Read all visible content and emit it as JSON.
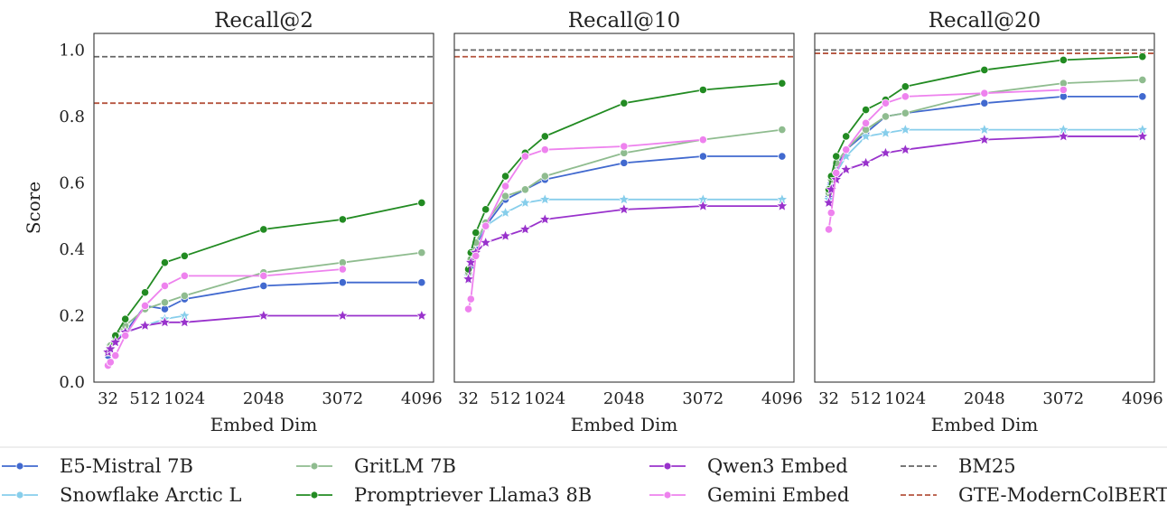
{
  "figure": {
    "ylabel": "Score",
    "xlabel": "Embed Dim"
  },
  "chart_data": [
    {
      "type": "line",
      "title": "Recall@2",
      "xlabel": "Embed Dim",
      "ylabel": "Score",
      "xlim": [
        -150,
        4250
      ],
      "ylim": [
        0.0,
        1.05
      ],
      "xticks": [
        32,
        512,
        1024,
        2048,
        3072,
        4096
      ],
      "yticks": [
        0.0,
        0.2,
        0.4,
        0.6,
        0.8,
        1.0
      ],
      "grid": false,
      "hlines": [
        {
          "name": "BM25",
          "y": 0.98,
          "color": "#666666"
        },
        {
          "name": "GTE-ModernColBERT",
          "y": 0.84,
          "color": "#b5543f"
        }
      ],
      "series": [
        {
          "name": "E5-Mistral 7B",
          "color": "#4169cf",
          "marker": "circle",
          "x": [
            32,
            64,
            128,
            256,
            512,
            768,
            1024,
            2048,
            3072,
            4096
          ],
          "y": [
            0.08,
            0.1,
            0.12,
            0.15,
            0.23,
            0.22,
            0.25,
            0.29,
            0.3,
            0.3
          ]
        },
        {
          "name": "Snowflake Arctic L",
          "color": "#87ceeb",
          "marker": "star",
          "x": [
            32,
            64,
            128,
            256,
            512,
            768,
            1024
          ],
          "y": [
            0.09,
            0.11,
            0.13,
            0.15,
            0.17,
            0.19,
            0.2
          ]
        },
        {
          "name": "GritLM 7B",
          "color": "#8fbc8f",
          "marker": "circle",
          "x": [
            32,
            64,
            128,
            256,
            512,
            768,
            1024,
            2048,
            3072,
            4096
          ],
          "y": [
            0.09,
            0.11,
            0.14,
            0.17,
            0.22,
            0.24,
            0.26,
            0.33,
            0.36,
            0.39
          ]
        },
        {
          "name": "Promptriever Llama3 8B",
          "color": "#228b22",
          "marker": "circle",
          "x": [
            32,
            64,
            128,
            256,
            512,
            768,
            1024,
            2048,
            3072,
            4096
          ],
          "y": [
            0.09,
            0.1,
            0.14,
            0.19,
            0.27,
            0.36,
            0.38,
            0.46,
            0.49,
            0.54
          ]
        },
        {
          "name": "Qwen3 Embed",
          "color": "#9932cc",
          "marker": "star",
          "x": [
            32,
            64,
            128,
            256,
            512,
            768,
            1024,
            2048,
            3072,
            4096
          ],
          "y": [
            0.09,
            0.1,
            0.12,
            0.15,
            0.17,
            0.18,
            0.18,
            0.2,
            0.2,
            0.2
          ]
        },
        {
          "name": "Gemini Embed",
          "color": "#ee82ee",
          "marker": "circle",
          "x": [
            32,
            64,
            128,
            256,
            512,
            768,
            1024,
            2048,
            3072
          ],
          "y": [
            0.05,
            0.06,
            0.08,
            0.14,
            0.23,
            0.29,
            0.32,
            0.32,
            0.34
          ]
        }
      ]
    },
    {
      "type": "line",
      "title": "Recall@10",
      "xlabel": "Embed Dim",
      "xlim": [
        -150,
        4250
      ],
      "ylim": [
        0.0,
        1.05
      ],
      "xticks": [
        32,
        512,
        1024,
        2048,
        3072,
        4096
      ],
      "grid": false,
      "hlines": [
        {
          "name": "BM25",
          "y": 1.0,
          "color": "#666666"
        },
        {
          "name": "GTE-ModernColBERT",
          "y": 0.98,
          "color": "#b5543f"
        }
      ],
      "series": [
        {
          "name": "E5-Mistral 7B",
          "color": "#4169cf",
          "marker": "circle",
          "x": [
            32,
            64,
            128,
            256,
            512,
            768,
            1024,
            2048,
            3072,
            4096
          ],
          "y": [
            0.31,
            0.35,
            0.41,
            0.47,
            0.55,
            0.58,
            0.61,
            0.66,
            0.68,
            0.68
          ]
        },
        {
          "name": "Snowflake Arctic L",
          "color": "#87ceeb",
          "marker": "star",
          "x": [
            32,
            64,
            128,
            256,
            512,
            768,
            1024,
            2048,
            3072,
            4096
          ],
          "y": [
            0.32,
            0.36,
            0.42,
            0.47,
            0.51,
            0.54,
            0.55,
            0.55,
            0.55,
            0.55
          ]
        },
        {
          "name": "GritLM 7B",
          "color": "#8fbc8f",
          "marker": "circle",
          "x": [
            32,
            64,
            128,
            256,
            512,
            768,
            1024,
            2048,
            3072,
            4096
          ],
          "y": [
            0.33,
            0.37,
            0.42,
            0.48,
            0.56,
            0.58,
            0.62,
            0.69,
            0.73,
            0.76
          ]
        },
        {
          "name": "Promptriever Llama3 8B",
          "color": "#228b22",
          "marker": "circle",
          "x": [
            32,
            64,
            128,
            256,
            512,
            768,
            1024,
            2048,
            3072,
            4096
          ],
          "y": [
            0.34,
            0.39,
            0.45,
            0.52,
            0.62,
            0.69,
            0.74,
            0.84,
            0.88,
            0.9
          ]
        },
        {
          "name": "Qwen3 Embed",
          "color": "#9932cc",
          "marker": "star",
          "x": [
            32,
            64,
            128,
            256,
            512,
            768,
            1024,
            2048,
            3072,
            4096
          ],
          "y": [
            0.31,
            0.36,
            0.39,
            0.42,
            0.44,
            0.46,
            0.49,
            0.52,
            0.53,
            0.53
          ]
        },
        {
          "name": "Gemini Embed",
          "color": "#ee82ee",
          "marker": "circle",
          "x": [
            32,
            64,
            128,
            256,
            512,
            768,
            1024,
            2048,
            3072
          ],
          "y": [
            0.22,
            0.25,
            0.38,
            0.47,
            0.59,
            0.68,
            0.7,
            0.71,
            0.73
          ]
        }
      ]
    },
    {
      "type": "line",
      "title": "Recall@20",
      "xlabel": "Embed Dim",
      "xlim": [
        -150,
        4250
      ],
      "ylim": [
        0.0,
        1.05
      ],
      "xticks": [
        32,
        512,
        1024,
        2048,
        3072,
        4096
      ],
      "grid": false,
      "hlines": [
        {
          "name": "BM25",
          "y": 1.0,
          "color": "#666666"
        },
        {
          "name": "GTE-ModernColBERT",
          "y": 0.99,
          "color": "#b5543f"
        }
      ],
      "series": [
        {
          "name": "E5-Mistral 7B",
          "color": "#4169cf",
          "marker": "circle",
          "x": [
            32,
            64,
            128,
            256,
            512,
            768,
            1024,
            2048,
            3072,
            4096
          ],
          "y": [
            0.56,
            0.6,
            0.65,
            0.7,
            0.75,
            0.8,
            0.81,
            0.84,
            0.86,
            0.86
          ]
        },
        {
          "name": "Snowflake Arctic L",
          "color": "#87ceeb",
          "marker": "star",
          "x": [
            32,
            64,
            128,
            256,
            512,
            768,
            1024,
            2048,
            3072,
            4096
          ],
          "y": [
            0.55,
            0.59,
            0.63,
            0.68,
            0.74,
            0.75,
            0.76,
            0.76,
            0.76,
            0.76
          ]
        },
        {
          "name": "GritLM 7B",
          "color": "#8fbc8f",
          "marker": "circle",
          "x": [
            32,
            64,
            128,
            256,
            512,
            768,
            1024,
            2048,
            3072,
            4096
          ],
          "y": [
            0.57,
            0.61,
            0.66,
            0.7,
            0.76,
            0.8,
            0.81,
            0.87,
            0.9,
            0.91
          ]
        },
        {
          "name": "Promptriever Llama3 8B",
          "color": "#228b22",
          "marker": "circle",
          "x": [
            32,
            64,
            128,
            256,
            512,
            768,
            1024,
            2048,
            3072,
            4096
          ],
          "y": [
            0.58,
            0.62,
            0.68,
            0.74,
            0.82,
            0.85,
            0.89,
            0.94,
            0.97,
            0.98
          ]
        },
        {
          "name": "Qwen3 Embed",
          "color": "#9932cc",
          "marker": "star",
          "x": [
            32,
            64,
            128,
            256,
            512,
            768,
            1024,
            2048,
            3072,
            4096
          ],
          "y": [
            0.54,
            0.58,
            0.61,
            0.64,
            0.66,
            0.69,
            0.7,
            0.73,
            0.74,
            0.74
          ]
        },
        {
          "name": "Gemini Embed",
          "color": "#ee82ee",
          "marker": "circle",
          "x": [
            32,
            64,
            128,
            256,
            512,
            768,
            1024,
            2048,
            3072
          ],
          "y": [
            0.46,
            0.51,
            0.63,
            0.7,
            0.78,
            0.84,
            0.86,
            0.87,
            0.88
          ]
        }
      ]
    }
  ],
  "legend": {
    "placement": "bottom",
    "entries": [
      {
        "label": "E5-Mistral 7B",
        "color": "#4169cf",
        "style": "line-marker"
      },
      {
        "label": "Snowflake Arctic L",
        "color": "#87ceeb",
        "style": "line-marker"
      },
      {
        "label": "GritLM 7B",
        "color": "#8fbc8f",
        "style": "line-marker"
      },
      {
        "label": "Promptriever Llama3 8B",
        "color": "#228b22",
        "style": "line-marker"
      },
      {
        "label": "Qwen3 Embed",
        "color": "#9932cc",
        "style": "line-marker"
      },
      {
        "label": "Gemini Embed",
        "color": "#ee82ee",
        "style": "line-marker"
      },
      {
        "label": "BM25",
        "color": "#666666",
        "style": "dashed"
      },
      {
        "label": "GTE-ModernColBERT",
        "color": "#b5543f",
        "style": "dashed"
      }
    ]
  }
}
